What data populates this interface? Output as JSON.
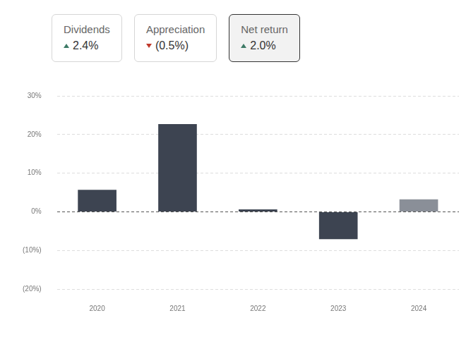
{
  "cards": [
    {
      "label": "Dividends",
      "value": "2.4%",
      "direction": "up"
    },
    {
      "label": "Appreciation",
      "value": "(0.5%)",
      "direction": "down"
    },
    {
      "label": "Net return",
      "value": "2.0%",
      "direction": "up",
      "selected": true
    }
  ],
  "chart_data": {
    "type": "bar",
    "categories": [
      "2020",
      "2021",
      "2022",
      "2023",
      "2024"
    ],
    "values": [
      5.7,
      22.7,
      0.6,
      -7.1,
      3.2
    ],
    "colors": [
      "#3d4451",
      "#3d4451",
      "#3d4451",
      "#3d4451",
      "#8a8f98"
    ],
    "ylim": [
      -20,
      30
    ],
    "yticks": [
      {
        "value": -20,
        "label": "(20%)"
      },
      {
        "value": -10,
        "label": "(10%)"
      },
      {
        "value": 0,
        "label": "0%"
      },
      {
        "value": 10,
        "label": "10%"
      },
      {
        "value": 20,
        "label": "20%"
      },
      {
        "value": 30,
        "label": "30%"
      }
    ],
    "grid": true
  }
}
